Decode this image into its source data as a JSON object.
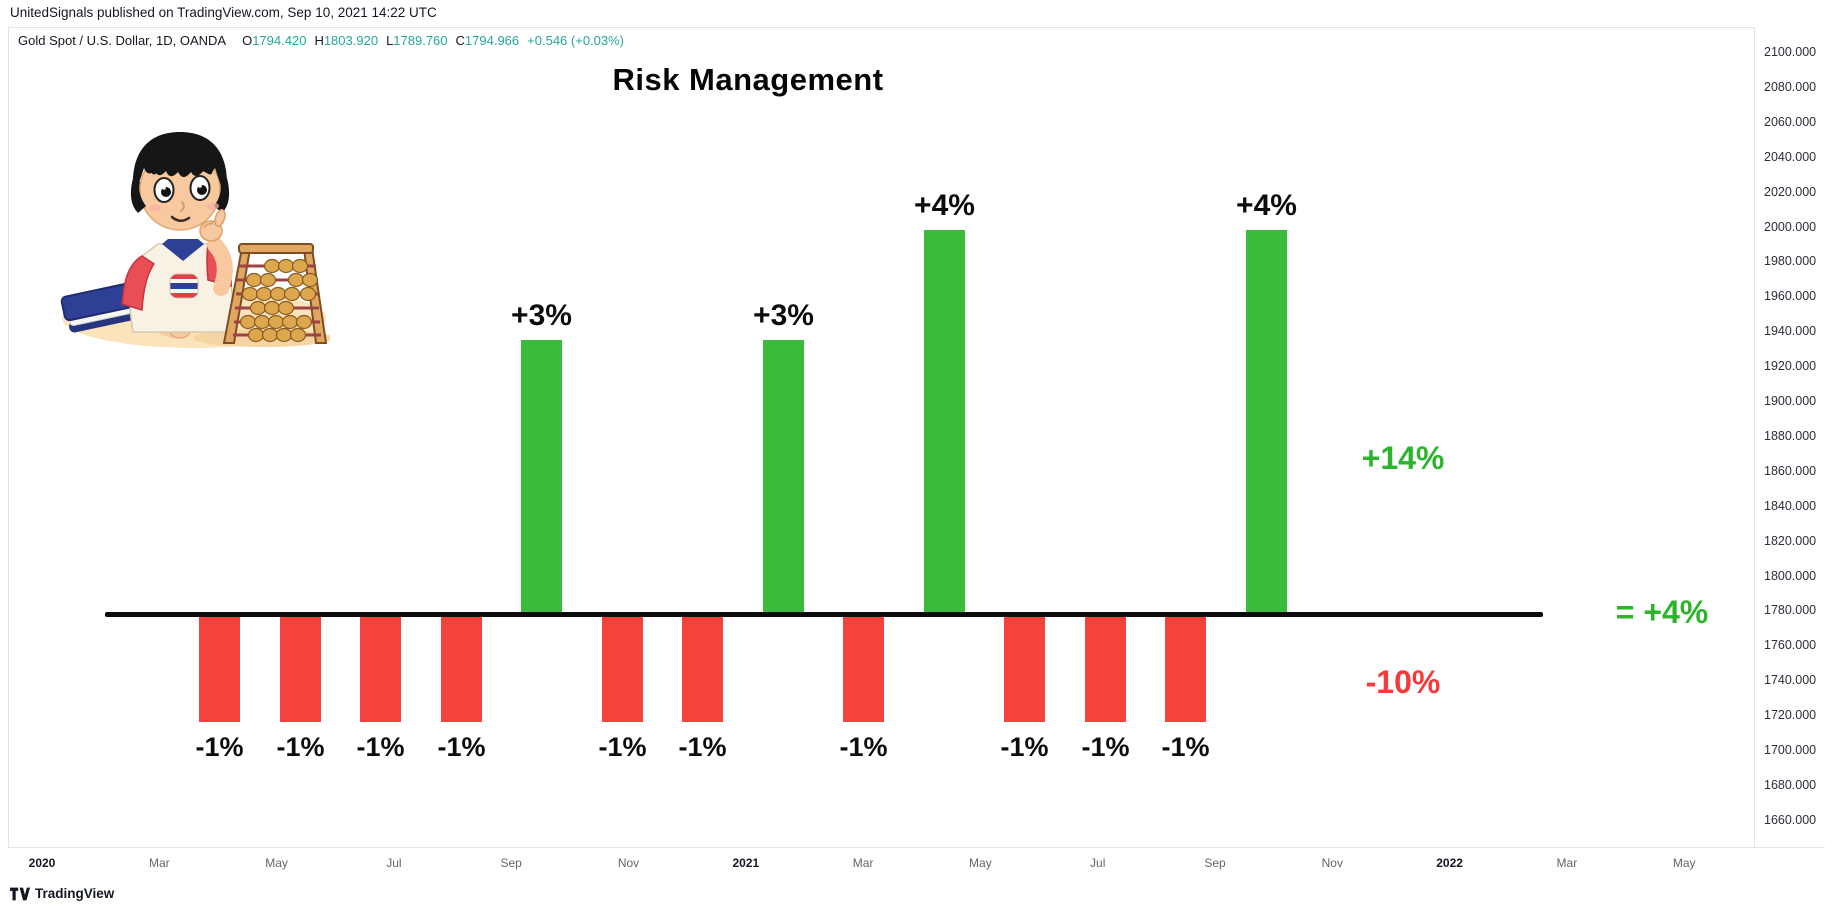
{
  "attribution": {
    "text": "UnitedSignals published on TradingView.com, Sep 10, 2021 14:22 UTC"
  },
  "legend": {
    "title": "Gold Spot / U.S. Dollar, 1D, OANDA",
    "ohlc": [
      {
        "k": "O",
        "v": "1794.420"
      },
      {
        "k": "H",
        "v": "1803.920"
      },
      {
        "k": "L",
        "v": "1789.760"
      },
      {
        "k": "C",
        "v": "1794.966"
      }
    ],
    "change": "+0.546 (+0.03%)"
  },
  "chart_data": {
    "type": "bar",
    "title": "Risk Management",
    "description": "Sequence of trade outcomes drawn over a Gold Spot / U.S. Dollar daily chart: ten small -1% losses and four larger wins (+3%, +3%, +4%, +4%) netting +4%",
    "bars": [
      {
        "value": -1,
        "label": "-1%"
      },
      {
        "value": -1,
        "label": "-1%"
      },
      {
        "value": -1,
        "label": "-1%"
      },
      {
        "value": -1,
        "label": "-1%"
      },
      {
        "value": 3,
        "label": "+3%"
      },
      {
        "value": -1,
        "label": "-1%"
      },
      {
        "value": -1,
        "label": "-1%"
      },
      {
        "value": 3,
        "label": "+3%"
      },
      {
        "value": -1,
        "label": "-1%"
      },
      {
        "value": 4,
        "label": "+4%"
      },
      {
        "value": -1,
        "label": "-1%"
      },
      {
        "value": -1,
        "label": "-1%"
      },
      {
        "value": -1,
        "label": "-1%"
      },
      {
        "value": 4,
        "label": "+4%"
      }
    ],
    "totals": {
      "gains": "+14%",
      "losses": "-10%",
      "net": "= +4%"
    },
    "baseline_value": 0,
    "y_axis": {
      "labels": [
        "2100.000",
        "2080.000",
        "2060.000",
        "2040.000",
        "2020.000",
        "2000.000",
        "1980.000",
        "1960.000",
        "1940.000",
        "1920.000",
        "1900.000",
        "1880.000",
        "1860.000",
        "1840.000",
        "1820.000",
        "1800.000",
        "1780.000",
        "1760.000",
        "1740.000",
        "1720.000",
        "1700.000",
        "1680.000",
        "1660.000"
      ]
    },
    "x_axis": {
      "labels": [
        {
          "text": "2020",
          "type": "year"
        },
        {
          "text": "Mar",
          "type": "month"
        },
        {
          "text": "May",
          "type": "month"
        },
        {
          "text": "Jul",
          "type": "month"
        },
        {
          "text": "Sep",
          "type": "month"
        },
        {
          "text": "Nov",
          "type": "month"
        },
        {
          "text": "2021",
          "type": "year"
        },
        {
          "text": "Mar",
          "type": "month"
        },
        {
          "text": "May",
          "type": "month"
        },
        {
          "text": "Jul",
          "type": "month"
        },
        {
          "text": "Sep",
          "type": "month"
        },
        {
          "text": "Nov",
          "type": "month"
        },
        {
          "text": "2022",
          "type": "year"
        },
        {
          "text": "Mar",
          "type": "month"
        },
        {
          "text": "May",
          "type": "month"
        }
      ]
    },
    "legend_position": "none",
    "grid": false
  },
  "footer": {
    "brand": "TradingView"
  },
  "colors": {
    "bar_green": "#3bbb3b",
    "bar_red": "#f4433c",
    "text_green": "#2cb52c",
    "text_red": "#f43b3b",
    "ohlc_teal": "#26a69a",
    "baseline": "#0c0c0c",
    "border": "#e0e3eb"
  }
}
